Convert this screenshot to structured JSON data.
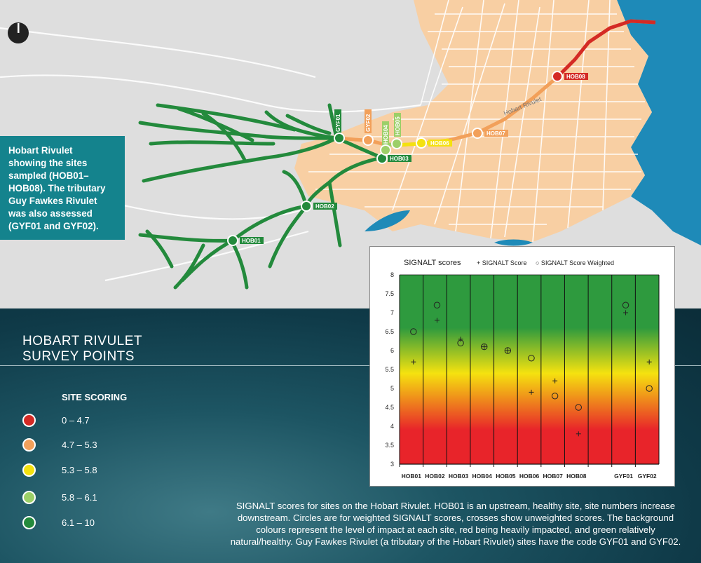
{
  "info_box": {
    "lines": [
      "Hobart Rivulet",
      "showing the sites",
      "sampled (HOB01–",
      "HOB08). The tributary",
      "Guy Fawkes Rivulet",
      "was also assessed",
      "(GYF01 and GYF02)."
    ]
  },
  "title": {
    "line1": "HOBART RIVULET",
    "line2": "SURVEY POINTS"
  },
  "legend": {
    "title": "SITE SCORING",
    "items": [
      {
        "label": "0 – 4.7",
        "color": "#d42a25"
      },
      {
        "label": "4.7 – 5.3",
        "color": "#f2a05a"
      },
      {
        "label": "5.3 – 5.8",
        "color": "#f4e10f"
      },
      {
        "label": "5.8 – 6.1",
        "color": "#9ccf68"
      },
      {
        "label": "6.1 – 10",
        "color": "#238a3c"
      }
    ]
  },
  "map": {
    "river_label": "Hobart Rivulet",
    "sites": [
      {
        "code": "HOB01",
        "color": "#238a3c"
      },
      {
        "code": "HOB02",
        "color": "#238a3c"
      },
      {
        "code": "HOB03",
        "color": "#238a3c"
      },
      {
        "code": "HOB04",
        "color": "#9ccf68"
      },
      {
        "code": "HOB05",
        "color": "#9ccf68"
      },
      {
        "code": "HOB06",
        "color": "#f4e10f"
      },
      {
        "code": "HOB07",
        "color": "#f2a05a"
      },
      {
        "code": "HOB08",
        "color": "#d42a25"
      },
      {
        "code": "GYF01",
        "color": "#238a3c"
      },
      {
        "code": "GYF02",
        "color": "#f2a05a"
      }
    ]
  },
  "caption": "SIGNALT scores for sites on the Hobart Rivulet. HOB01 is an upstream, healthy site, site numbers increase downstream. Circles are for weighted SIGNALT scores, crosses show unweighted scores. The background colours represent the level of impact at each site, red being heavily impacted, and green relatively natural/healthy. Guy Fawkes Rivulet (a tributary of the Hobart Rivulet) sites have the code GYF01 and GYF02.",
  "chart_data": {
    "type": "scatter",
    "title": "SIGNALT scores",
    "legend": {
      "cross_label": "+ SIGNALT Score",
      "circle_label": "○ SIGNALT Score Weighted",
      "placement": "top"
    },
    "categories": [
      "HOB01",
      "HOB02",
      "HOB03",
      "HOB04",
      "HOB05",
      "HOB06",
      "HOB07",
      "HOB08",
      "",
      "GYF01",
      "GYF02"
    ],
    "yticks": [
      "3",
      "3.5",
      "4",
      "4.5",
      "5",
      "5.5",
      "6",
      "6.5",
      "7",
      "7.5",
      "8"
    ],
    "ylim": [
      3,
      8
    ],
    "series": [
      {
        "name": "SIGNALT Score",
        "marker": "cross",
        "values": [
          5.7,
          6.8,
          6.3,
          6.1,
          6.0,
          4.9,
          5.2,
          3.8,
          null,
          7.0,
          5.7
        ]
      },
      {
        "name": "SIGNALT Score Weighted",
        "marker": "circle",
        "values": [
          6.5,
          7.2,
          6.2,
          6.1,
          6.0,
          5.8,
          4.8,
          4.5,
          null,
          7.2,
          5.0
        ]
      }
    ],
    "grid": true,
    "colors": {
      "bottom": "#e8242a",
      "mid": "#f5e20f",
      "top": "#2e9a3e"
    }
  }
}
